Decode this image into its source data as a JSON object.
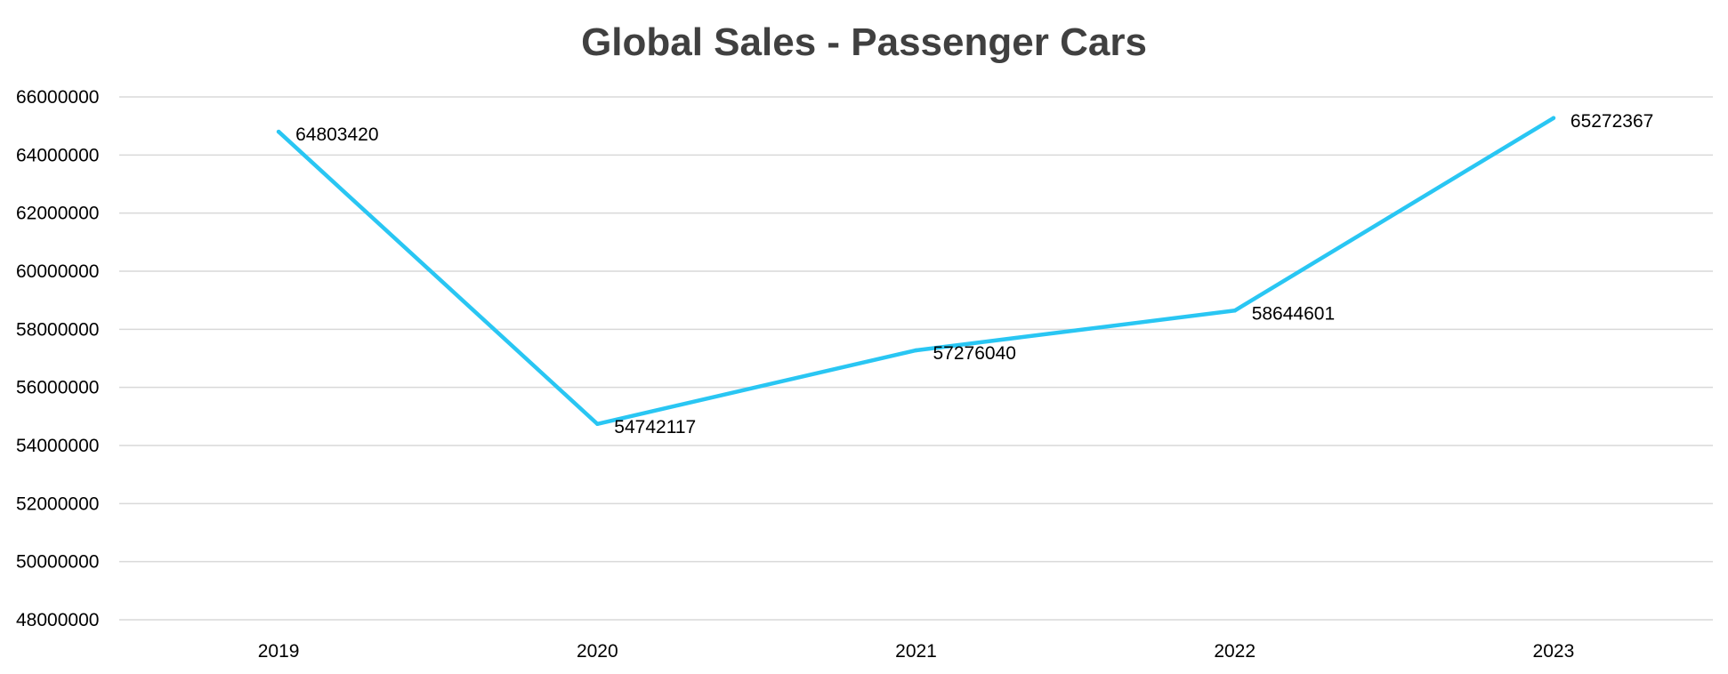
{
  "chart_data": {
    "type": "line",
    "title": "Global Sales - Passenger Cars",
    "xlabel": "",
    "ylabel": "",
    "categories": [
      "2019",
      "2020",
      "2021",
      "2022",
      "2023"
    ],
    "series": [
      {
        "name": "Global Sales - Passenger Cars",
        "values": [
          64803420,
          54742117,
          57276040,
          58644601,
          65272367
        ],
        "data_labels": [
          "64803420",
          "54742117",
          "57276040",
          "58644601",
          "65272367"
        ],
        "color": "#29c6f3"
      }
    ],
    "ylim": [
      48000000,
      66000000
    ],
    "y_ticks": [
      48000000,
      50000000,
      52000000,
      54000000,
      56000000,
      58000000,
      60000000,
      62000000,
      64000000,
      66000000
    ],
    "y_tick_labels": [
      "48000000",
      "50000000",
      "52000000",
      "54000000",
      "56000000",
      "58000000",
      "60000000",
      "62000000",
      "64000000",
      "66000000"
    ],
    "grid": true,
    "legend": "none",
    "colors": {
      "line": "#29c6f3",
      "grid": "#d9d9d9",
      "title": "#404040",
      "text": "#000000"
    }
  }
}
